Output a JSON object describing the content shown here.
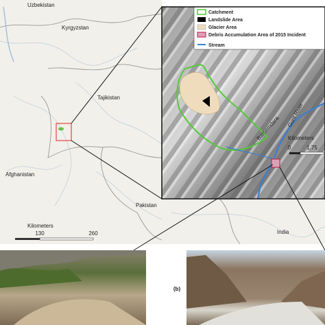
{
  "countries": [
    "Uzbekistan",
    "Kyrgyzstan",
    "Tajikistan",
    "Afghanistan",
    "Pakistan",
    "India"
  ],
  "scale_bar": {
    "title": "Kilometers",
    "labels": [
      "130",
      "260"
    ]
  },
  "inset": {
    "legend": [
      "Catchment",
      "Landslide Area",
      "Glacier Area",
      "Debris Accumulation Area of 2015 Incident",
      "Stream"
    ],
    "scale_bar": {
      "title": "Kilometers",
      "labels": [
        "0",
        "1.75"
      ]
    },
    "places": [
      "Barsemdara",
      "Gunt River"
    ]
  },
  "photo_label": "(b)"
}
